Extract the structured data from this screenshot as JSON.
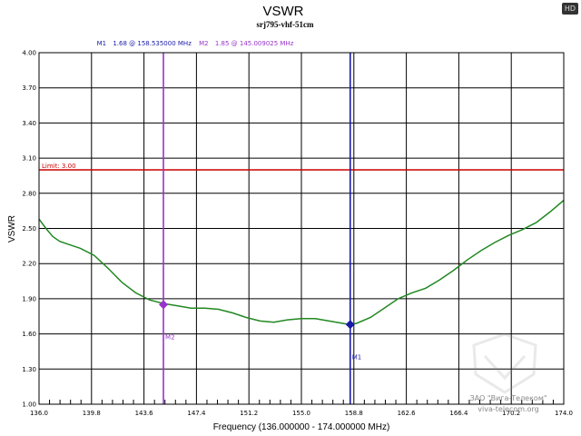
{
  "badge": "HD",
  "chart_data": {
    "type": "line",
    "title": "VSWR",
    "subtitle": "srj795-vhf-51cm",
    "xlabel": "Frequency (136.000000 - 174.000000 MHz)",
    "ylabel": "VSWR",
    "xlim": [
      136.0,
      174.0
    ],
    "ylim": [
      1.0,
      4.0
    ],
    "x_ticks": [
      "136.0",
      "139.8",
      "143.6",
      "147.4",
      "151.2",
      "155.0",
      "158.8",
      "162.6",
      "166.4",
      "170.2",
      "174.0"
    ],
    "y_ticks": [
      "1.00",
      "1.30",
      "1.60",
      "1.90",
      "2.20",
      "2.50",
      "2.80",
      "3.10",
      "3.40",
      "3.70",
      "4.00"
    ],
    "grid": true,
    "limit": {
      "label": "Limit: 3.00",
      "value": 3.0,
      "color": "#cc0000"
    },
    "markers": [
      {
        "id": "M1",
        "label": "M1",
        "readout_label": "M1",
        "readout": "1.68 @ 158.535000 MHz",
        "x": 158.535,
        "y": 1.68,
        "color": "#1a1aaa"
      },
      {
        "id": "M2",
        "label": "M2",
        "readout_label": "M2",
        "readout": "1.85 @ 145.009025 MHz",
        "x": 145.009,
        "y": 1.85,
        "color": "#9933cc"
      }
    ],
    "series": [
      {
        "color": "#228822",
        "x": [
          136.0,
          136.5,
          137.0,
          137.5,
          138.0,
          139.0,
          140.0,
          141.0,
          142.0,
          143.0,
          144.0,
          145.0,
          146.0,
          147.0,
          148.0,
          149.0,
          150.0,
          151.0,
          152.0,
          153.0,
          154.0,
          155.0,
          156.0,
          157.0,
          158.0,
          158.5,
          159.0,
          160.0,
          161.0,
          162.0,
          163.0,
          164.0,
          165.0,
          166.0,
          167.0,
          168.0,
          169.0,
          170.0,
          171.0,
          172.0,
          173.0,
          174.0
        ],
        "values": [
          2.58,
          2.5,
          2.43,
          2.39,
          2.37,
          2.33,
          2.27,
          2.16,
          2.04,
          1.95,
          1.89,
          1.86,
          1.84,
          1.82,
          1.82,
          1.81,
          1.78,
          1.74,
          1.71,
          1.7,
          1.72,
          1.73,
          1.73,
          1.71,
          1.69,
          1.68,
          1.69,
          1.74,
          1.82,
          1.9,
          1.95,
          1.99,
          2.06,
          2.14,
          2.23,
          2.31,
          2.38,
          2.44,
          2.49,
          2.55,
          2.64,
          2.74
        ]
      }
    ]
  },
  "watermark": {
    "company": "ЗАО \"Вига-Телеком\"",
    "site": "viva-telecom.org"
  }
}
